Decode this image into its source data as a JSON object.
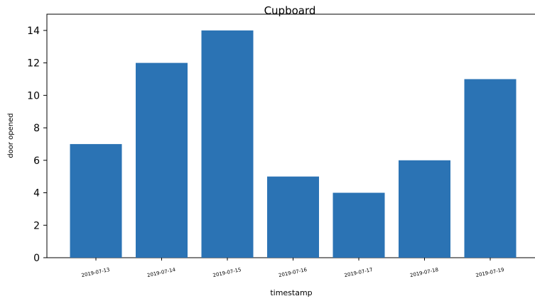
{
  "chart_data": {
    "type": "bar",
    "title": "Cupboard",
    "xlabel": "timestamp",
    "ylabel": "door opened",
    "categories": [
      "2019-07-13",
      "2019-07-14",
      "2019-07-15",
      "2019-07-16",
      "2019-07-17",
      "2019-07-18",
      "2019-07-19"
    ],
    "values": [
      7,
      12,
      14,
      5,
      4,
      6,
      11
    ],
    "ylim": [
      0,
      15
    ],
    "yticks": [
      0,
      2,
      4,
      6,
      8,
      10,
      12,
      14
    ],
    "grid": false,
    "bar_color": "#2b73b4"
  }
}
